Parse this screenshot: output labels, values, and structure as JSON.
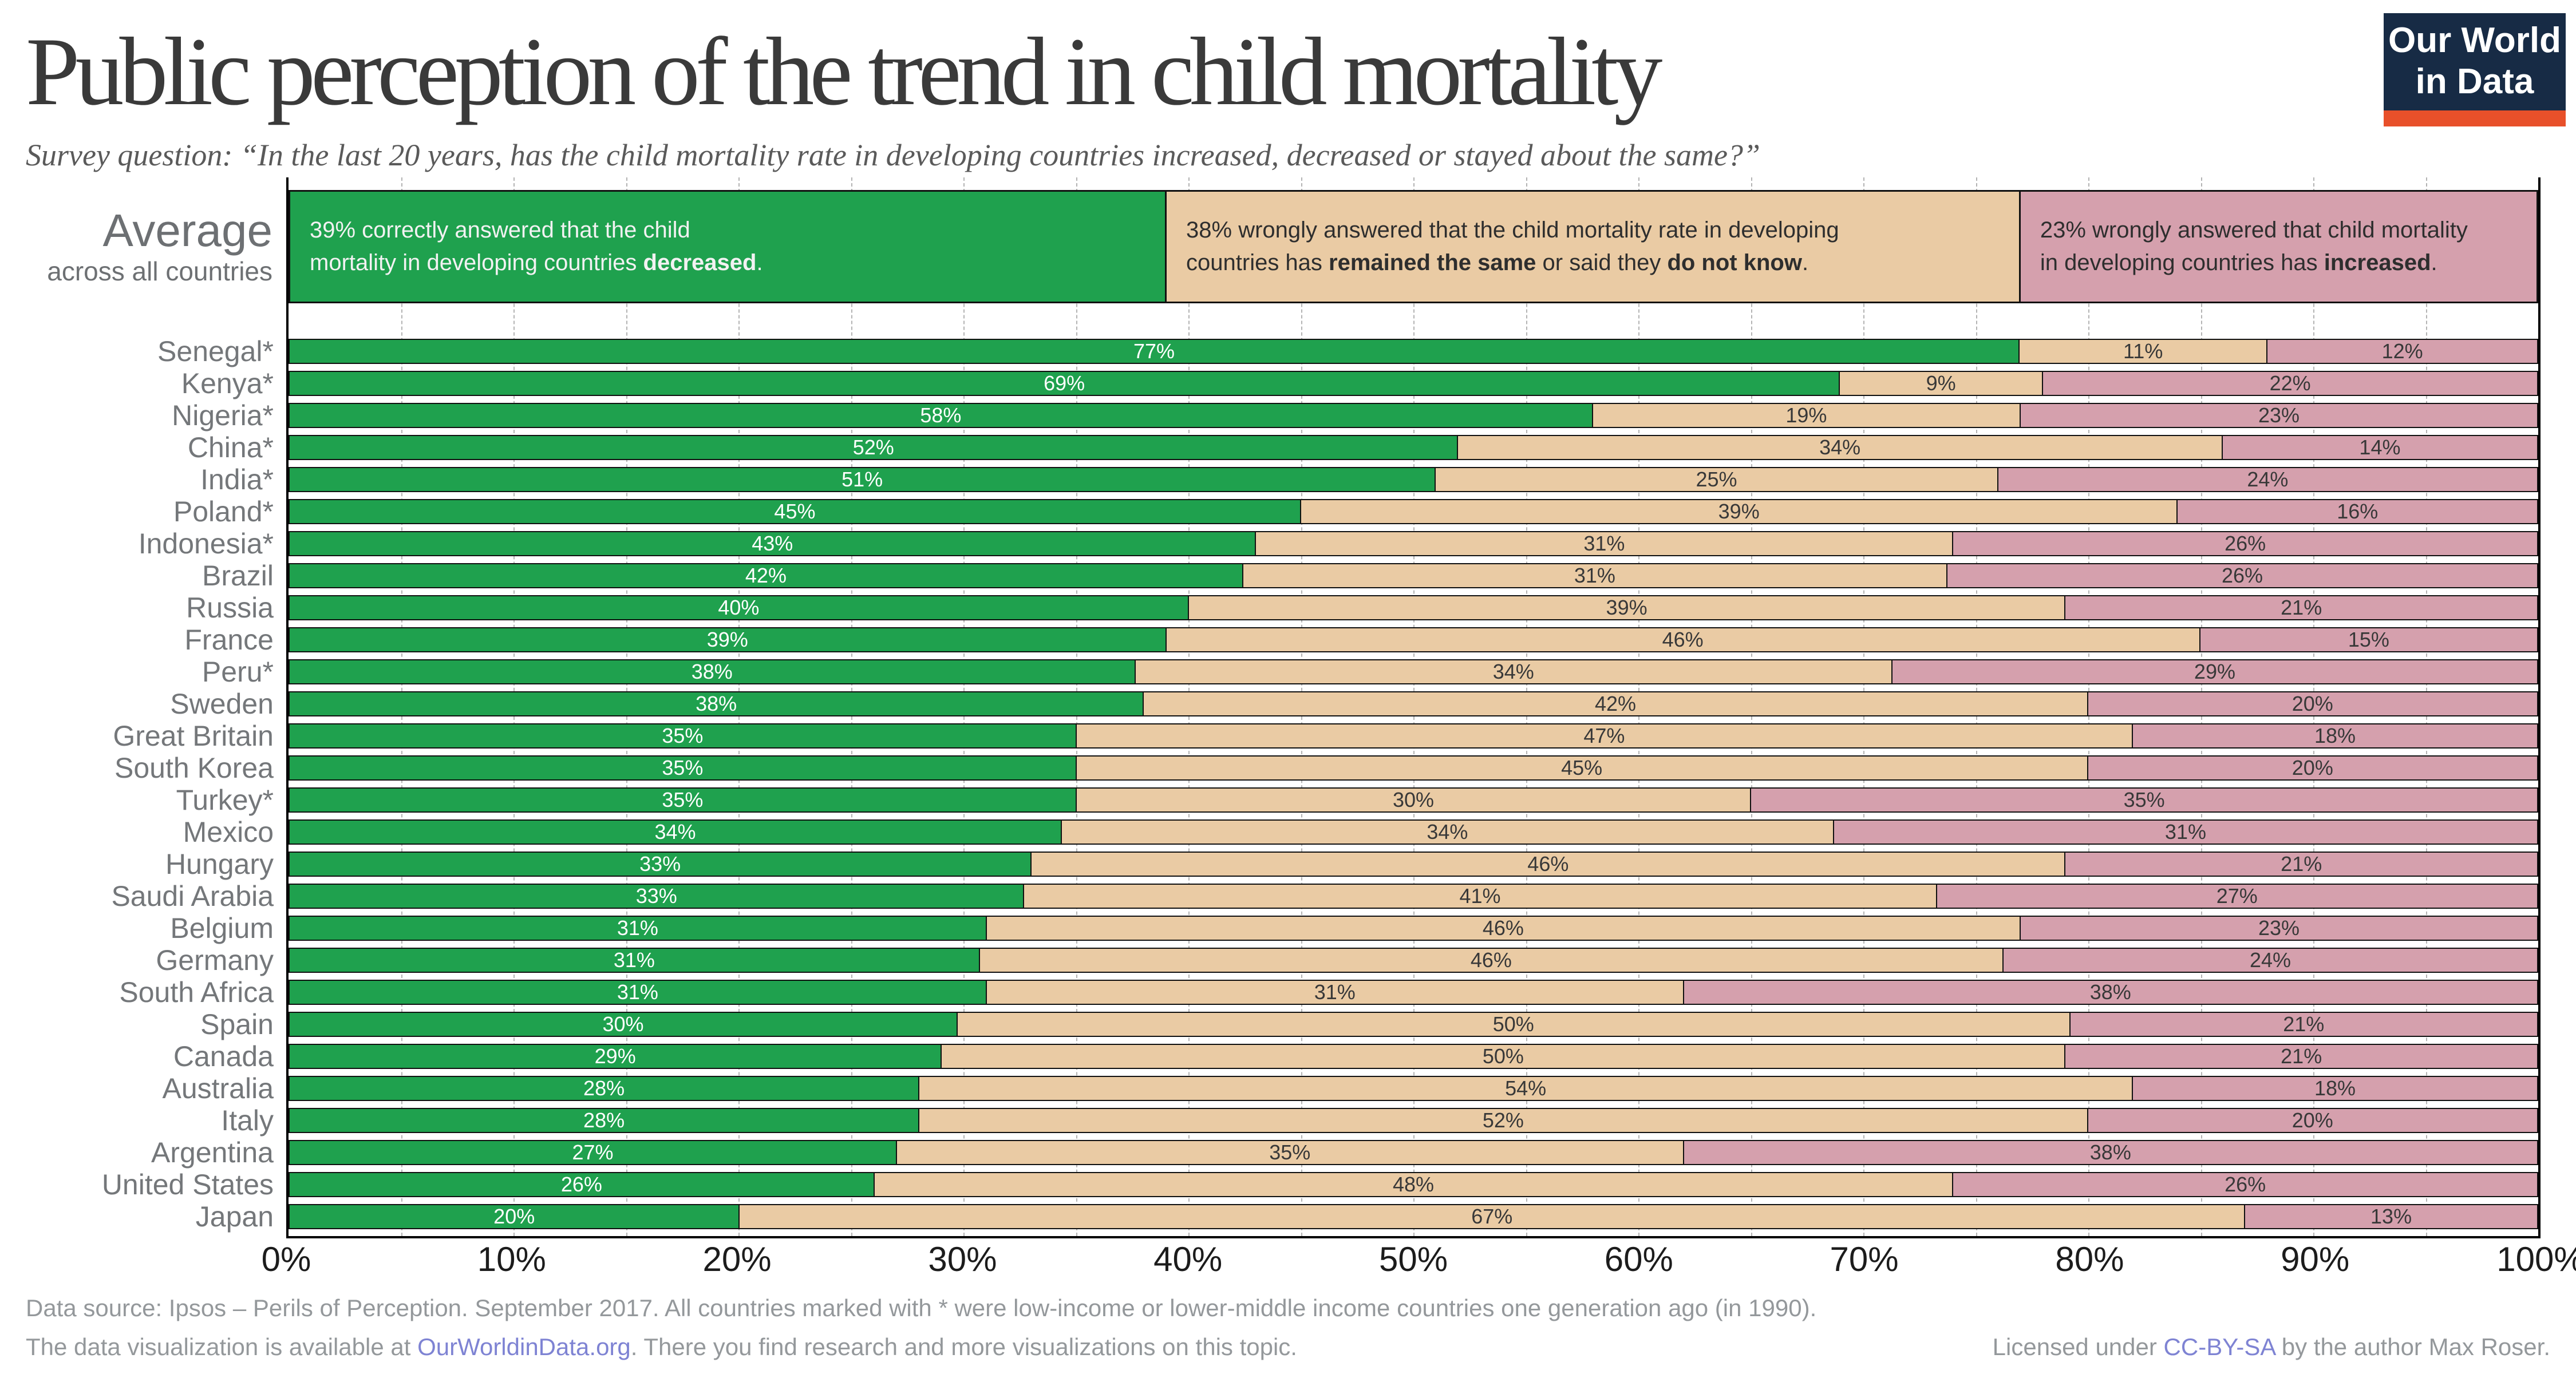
{
  "header": {
    "title": "Public perception of the trend in child mortality",
    "subtitle": "Survey question: “In the last 20 years, has the child mortality rate in developing countries increased, decreased or stayed about the same?”"
  },
  "logo": {
    "lines": [
      "Our World",
      "in Data"
    ],
    "background_color": "#172b45",
    "accent_color": "#e8502a"
  },
  "average": {
    "label_main": "Average",
    "label_sub": "across all countries",
    "segments": [
      {
        "value": 39,
        "parts": [
          [
            "39% correctly answered that the child\nmortality in developing countries ",
            0
          ],
          [
            "decreased",
            1
          ],
          [
            ".",
            0
          ]
        ]
      },
      {
        "value": 38,
        "parts": [
          [
            "38% wrongly answered that the child mortality rate in developing\ncountries has ",
            0
          ],
          [
            "remained the same",
            1
          ],
          [
            " or said they ",
            0
          ],
          [
            "do not know",
            1
          ],
          [
            ".",
            0
          ]
        ]
      },
      {
        "value": 23,
        "parts": [
          [
            "23% wrongly answered that child mortality\nin developing countries has ",
            0
          ],
          [
            "increased",
            1
          ],
          [
            ".",
            0
          ]
        ]
      }
    ]
  },
  "chart_data": {
    "type": "bar",
    "subtype": "horizontal-stacked",
    "title": "Public perception of the trend in child mortality",
    "unit": "%",
    "xlim": [
      0,
      100
    ],
    "x_ticks": [
      "0%",
      "10%",
      "20%",
      "30%",
      "40%",
      "50%",
      "60%",
      "70%",
      "80%",
      "90%",
      "100%"
    ],
    "grid": "dashed vertical lines every 5%",
    "categories": [
      "Senegal*",
      "Kenya*",
      "Nigeria*",
      "China*",
      "India*",
      "Poland*",
      "Indonesia*",
      "Brazil",
      "Russia",
      "France",
      "Peru*",
      "Sweden",
      "Great Britain",
      "South Korea",
      "Turkey*",
      "Mexico",
      "Hungary",
      "Saudi Arabia",
      "Belgium",
      "Germany",
      "South Africa",
      "Spain",
      "Canada",
      "Australia",
      "Italy",
      "Argentina",
      "United States",
      "Japan"
    ],
    "series": [
      {
        "name": "decreased (correct answer)",
        "color": "#1fa14e",
        "label_color": "#ffffff",
        "values": [
          77,
          69,
          58,
          52,
          51,
          45,
          43,
          42,
          40,
          39,
          38,
          38,
          35,
          35,
          35,
          34,
          33,
          33,
          31,
          31,
          31,
          30,
          29,
          28,
          28,
          27,
          26,
          20
        ]
      },
      {
        "name": "remained the same / do not know",
        "color": "#eacba4",
        "label_color": "#383838",
        "values": [
          11,
          9,
          19,
          34,
          25,
          39,
          31,
          31,
          39,
          46,
          34,
          42,
          47,
          45,
          30,
          34,
          46,
          41,
          46,
          46,
          31,
          50,
          50,
          54,
          52,
          35,
          48,
          67
        ]
      },
      {
        "name": "increased",
        "color": "#d5a0ad",
        "label_color": "#383838",
        "values": [
          12,
          22,
          23,
          14,
          24,
          16,
          26,
          26,
          21,
          15,
          29,
          20,
          18,
          20,
          35,
          31,
          21,
          27,
          23,
          24,
          38,
          21,
          21,
          18,
          20,
          38,
          26,
          13
        ]
      }
    ],
    "average": {
      "decreased": 39,
      "same_or_dont_know": 38,
      "increased": 23
    }
  },
  "footer": {
    "line1": "Data source: Ipsos – Perils of Perception. September 2017. All countries marked with * were low-income or lower-middle income countries one generation ago (in 1990).",
    "line2_parts": [
      [
        "The data visualization is available at ",
        0
      ],
      [
        "OurWorldinData.org",
        2
      ],
      [
        ". There you find research and more visualizations on this topic.",
        0
      ]
    ],
    "line2_right_parts": [
      [
        "Licensed under ",
        0
      ],
      [
        "CC-BY-SA",
        2
      ],
      [
        " by the author Max Roser.",
        0
      ]
    ]
  },
  "colors": {
    "decreased": "#1fa14e",
    "same": "#eacba4",
    "increased": "#d5a0ad",
    "grid": "#b3b3b3",
    "axis": "#000000",
    "link": "#7e83d3"
  }
}
